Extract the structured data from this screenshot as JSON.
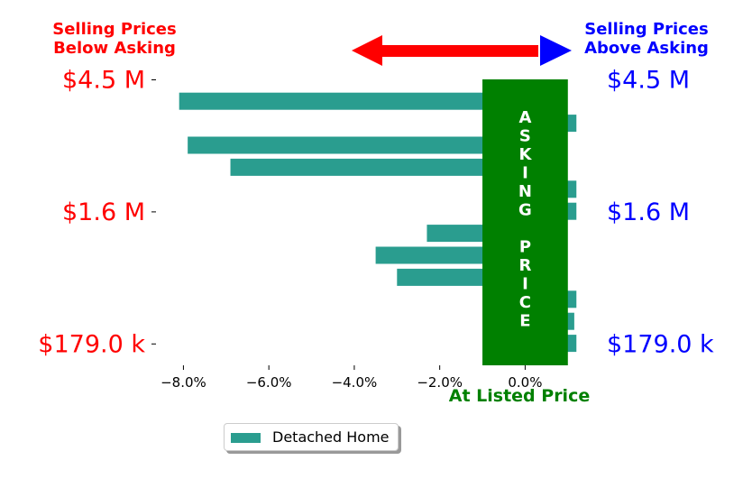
{
  "colors": {
    "bar": "#2a9d8f",
    "asking_box": "#008000",
    "below": "#ff0000",
    "above": "#0000ff",
    "at_listed": "#008000"
  },
  "header": {
    "below_label": [
      "Selling Prices",
      "Below Asking"
    ],
    "above_label": [
      "Selling Prices",
      "Above Asking"
    ]
  },
  "asking_box": {
    "letters": [
      "A",
      "S",
      "K",
      "I",
      "N",
      "G",
      "",
      "P",
      "R",
      "I",
      "C",
      "E"
    ]
  },
  "at_listed_label": "At Listed Price",
  "legend": {
    "label": "Detached Home"
  },
  "chart_data": {
    "type": "bar",
    "orientation": "horizontal",
    "series": [
      {
        "name": "Detached Home",
        "values": [
          -8.1,
          1.2,
          -7.9,
          -6.9,
          1.2,
          1.2,
          -2.3,
          -3.5,
          -3.0,
          1.2,
          1.15,
          1.2
        ]
      }
    ],
    "xlim": [
      -8.6,
      1.3
    ],
    "x_ticks": [
      -8,
      -6,
      -4,
      -2,
      0
    ],
    "x_tick_labels": [
      "−8.0%",
      "−6.0%",
      "−4.0%",
      "−2.0%",
      "0.0%"
    ],
    "y_ticks_left": [
      "$4.5 M",
      "$1.6 M",
      "$179.0 k"
    ],
    "y_ticks_right": [
      "$4.5 M",
      "$1.6 M",
      "$179.0 k"
    ],
    "y_tick_bar_index": [
      0,
      6,
      12
    ]
  }
}
